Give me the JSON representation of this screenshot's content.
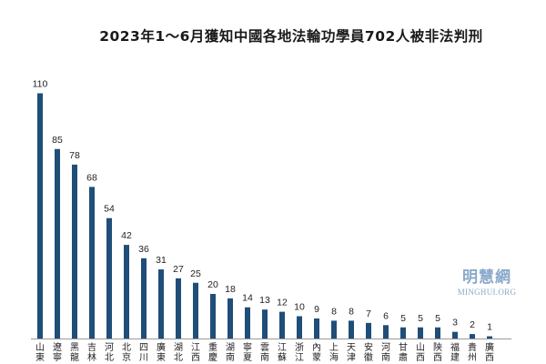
{
  "chart_data": {
    "type": "bar",
    "title": "2023年1～6月獲知中國各地法輪功學員702人被非法判刑",
    "categories": [
      "山東",
      "遼寧",
      "黑龍",
      "吉林",
      "河北",
      "北京",
      "四川",
      "廣東",
      "湖北",
      "江西",
      "重慶",
      "湖南",
      "寧夏",
      "雲南",
      "江蘇",
      "浙江",
      "內蒙",
      "上海",
      "天津",
      "安徽",
      "河南",
      "甘肅",
      "山西",
      "陝西",
      "福建",
      "貴州",
      "廣西"
    ],
    "values": [
      110,
      85,
      78,
      68,
      54,
      42,
      36,
      31,
      27,
      25,
      20,
      18,
      14,
      13,
      12,
      10,
      9,
      8,
      8,
      7,
      6,
      5,
      5,
      5,
      3,
      2,
      1
    ],
    "xlabel": "",
    "ylabel": "",
    "ylim": [
      0,
      120
    ],
    "grid": false,
    "bar_color": "#1f4e79"
  },
  "watermark": {
    "cn": "明慧網",
    "en": "MINGHUI.ORG"
  }
}
